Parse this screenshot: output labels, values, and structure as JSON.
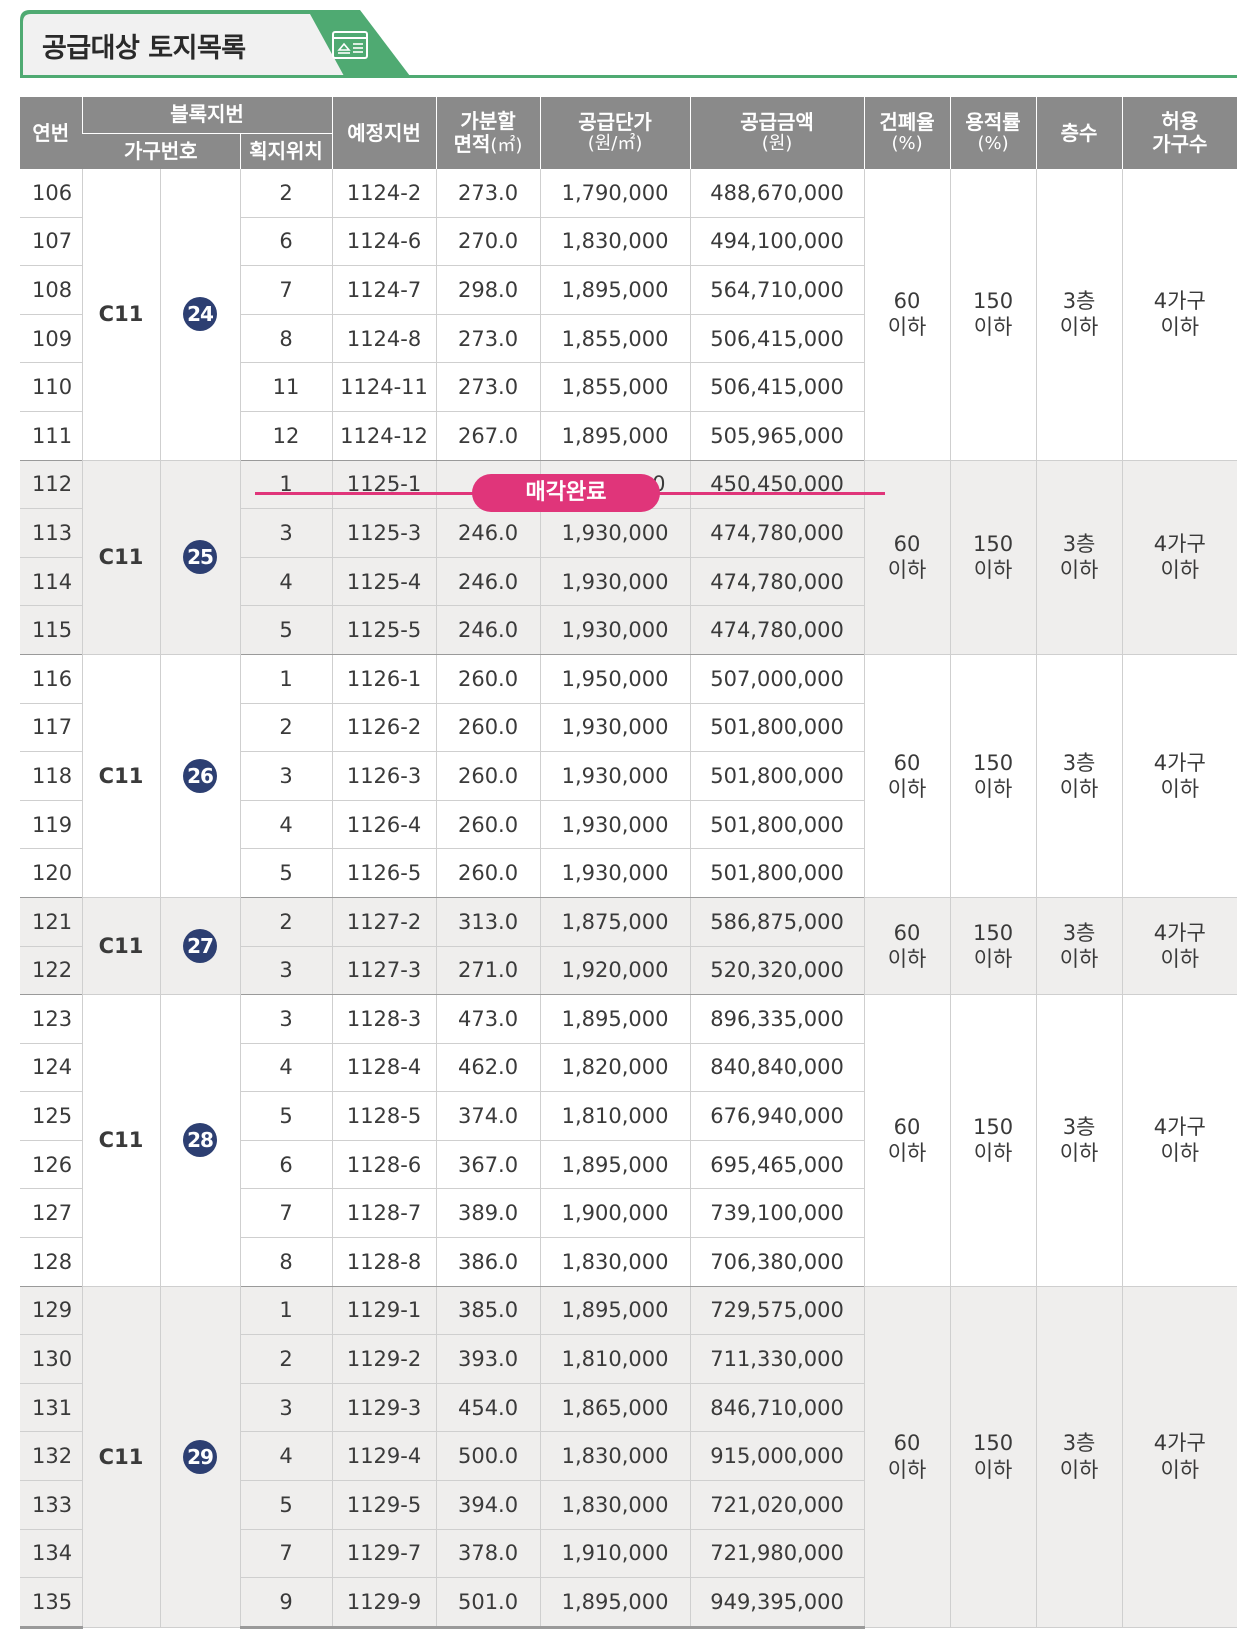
{
  "title": "공급대상 토지목록",
  "headers": {
    "no": "연번",
    "block_group": "블록지번",
    "household_no": "가구번호",
    "lot_position": "획지위치",
    "planned_lot": "예정지번",
    "area_line1": "가분할",
    "area_line2": "면적",
    "area_unit": "(㎡)",
    "unit_price_line1": "공급단가",
    "unit_price_unit": "(원/㎡)",
    "amount_line1": "공급금액",
    "amount_unit": "(원)",
    "bcr_line1": "건폐율",
    "bcr_unit": "(%)",
    "far_line1": "용적률",
    "far_unit": "(%)",
    "floors": "층수",
    "households_line1": "허용",
    "households_line2": "가구수"
  },
  "sold_label": "매각완료",
  "groups": [
    {
      "block": "C11",
      "household": "24",
      "shade": false,
      "bcr": [
        "60",
        "이하"
      ],
      "far": [
        "150",
        "이하"
      ],
      "floors": [
        "3층",
        "이하"
      ],
      "households": [
        "4가구",
        "이하"
      ],
      "rows": [
        {
          "no": "106",
          "lot": "2",
          "planned": "1124-2",
          "area": "273.0",
          "price": "1,790,000",
          "amount": "488,670,000"
        },
        {
          "no": "107",
          "lot": "6",
          "planned": "1124-6",
          "area": "270.0",
          "price": "1,830,000",
          "amount": "494,100,000"
        },
        {
          "no": "108",
          "lot": "7",
          "planned": "1124-7",
          "area": "298.0",
          "price": "1,895,000",
          "amount": "564,710,000"
        },
        {
          "no": "109",
          "lot": "8",
          "planned": "1124-8",
          "area": "273.0",
          "price": "1,855,000",
          "amount": "506,415,000"
        },
        {
          "no": "110",
          "lot": "11",
          "planned": "1124-11",
          "area": "273.0",
          "price": "1,855,000",
          "amount": "506,415,000"
        },
        {
          "no": "111",
          "lot": "12",
          "planned": "1124-12",
          "area": "267.0",
          "price": "1,895,000",
          "amount": "505,965,000"
        }
      ]
    },
    {
      "block": "C11",
      "household": "25",
      "shade": true,
      "bcr": [
        "60",
        "이하"
      ],
      "far": [
        "150",
        "이하"
      ],
      "floors": [
        "3층",
        "이하"
      ],
      "households": [
        "4가구",
        "이하"
      ],
      "rows": [
        {
          "no": "112",
          "lot": "1",
          "planned": "1125-1",
          "area": "",
          "price": "00",
          "amount": "450,450,000",
          "sold": true
        },
        {
          "no": "113",
          "lot": "3",
          "planned": "1125-3",
          "area": "246.0",
          "price": "1,930,000",
          "amount": "474,780,000"
        },
        {
          "no": "114",
          "lot": "4",
          "planned": "1125-4",
          "area": "246.0",
          "price": "1,930,000",
          "amount": "474,780,000"
        },
        {
          "no": "115",
          "lot": "5",
          "planned": "1125-5",
          "area": "246.0",
          "price": "1,930,000",
          "amount": "474,780,000"
        }
      ]
    },
    {
      "block": "C11",
      "household": "26",
      "shade": false,
      "bcr": [
        "60",
        "이하"
      ],
      "far": [
        "150",
        "이하"
      ],
      "floors": [
        "3층",
        "이하"
      ],
      "households": [
        "4가구",
        "이하"
      ],
      "rows": [
        {
          "no": "116",
          "lot": "1",
          "planned": "1126-1",
          "area": "260.0",
          "price": "1,950,000",
          "amount": "507,000,000"
        },
        {
          "no": "117",
          "lot": "2",
          "planned": "1126-2",
          "area": "260.0",
          "price": "1,930,000",
          "amount": "501,800,000"
        },
        {
          "no": "118",
          "lot": "3",
          "planned": "1126-3",
          "area": "260.0",
          "price": "1,930,000",
          "amount": "501,800,000"
        },
        {
          "no": "119",
          "lot": "4",
          "planned": "1126-4",
          "area": "260.0",
          "price": "1,930,000",
          "amount": "501,800,000"
        },
        {
          "no": "120",
          "lot": "5",
          "planned": "1126-5",
          "area": "260.0",
          "price": "1,930,000",
          "amount": "501,800,000"
        }
      ]
    },
    {
      "block": "C11",
      "household": "27",
      "shade": true,
      "bcr": [
        "60",
        "이하"
      ],
      "far": [
        "150",
        "이하"
      ],
      "floors": [
        "3층",
        "이하"
      ],
      "households": [
        "4가구",
        "이하"
      ],
      "rows": [
        {
          "no": "121",
          "lot": "2",
          "planned": "1127-2",
          "area": "313.0",
          "price": "1,875,000",
          "amount": "586,875,000"
        },
        {
          "no": "122",
          "lot": "3",
          "planned": "1127-3",
          "area": "271.0",
          "price": "1,920,000",
          "amount": "520,320,000"
        }
      ]
    },
    {
      "block": "C11",
      "household": "28",
      "shade": false,
      "bcr": [
        "60",
        "이하"
      ],
      "far": [
        "150",
        "이하"
      ],
      "floors": [
        "3층",
        "이하"
      ],
      "households": [
        "4가구",
        "이하"
      ],
      "rows": [
        {
          "no": "123",
          "lot": "3",
          "planned": "1128-3",
          "area": "473.0",
          "price": "1,895,000",
          "amount": "896,335,000"
        },
        {
          "no": "124",
          "lot": "4",
          "planned": "1128-4",
          "area": "462.0",
          "price": "1,820,000",
          "amount": "840,840,000"
        },
        {
          "no": "125",
          "lot": "5",
          "planned": "1128-5",
          "area": "374.0",
          "price": "1,810,000",
          "amount": "676,940,000"
        },
        {
          "no": "126",
          "lot": "6",
          "planned": "1128-6",
          "area": "367.0",
          "price": "1,895,000",
          "amount": "695,465,000"
        },
        {
          "no": "127",
          "lot": "7",
          "planned": "1128-7",
          "area": "389.0",
          "price": "1,900,000",
          "amount": "739,100,000"
        },
        {
          "no": "128",
          "lot": "8",
          "planned": "1128-8",
          "area": "386.0",
          "price": "1,830,000",
          "amount": "706,380,000"
        }
      ]
    },
    {
      "block": "C11",
      "household": "29",
      "shade": true,
      "bcr": [
        "60",
        "이하"
      ],
      "far": [
        "150",
        "이하"
      ],
      "floors": [
        "3층",
        "이하"
      ],
      "households": [
        "4가구",
        "이하"
      ],
      "rows": [
        {
          "no": "129",
          "lot": "1",
          "planned": "1129-1",
          "area": "385.0",
          "price": "1,895,000",
          "amount": "729,575,000"
        },
        {
          "no": "130",
          "lot": "2",
          "planned": "1129-2",
          "area": "393.0",
          "price": "1,810,000",
          "amount": "711,330,000"
        },
        {
          "no": "131",
          "lot": "3",
          "planned": "1129-3",
          "area": "454.0",
          "price": "1,865,000",
          "amount": "846,710,000"
        },
        {
          "no": "132",
          "lot": "4",
          "planned": "1129-4",
          "area": "500.0",
          "price": "1,830,000",
          "amount": "915,000,000"
        },
        {
          "no": "133",
          "lot": "5",
          "planned": "1129-5",
          "area": "394.0",
          "price": "1,830,000",
          "amount": "721,020,000"
        },
        {
          "no": "134",
          "lot": "7",
          "planned": "1129-7",
          "area": "378.0",
          "price": "1,910,000",
          "amount": "721,980,000"
        },
        {
          "no": "135",
          "lot": "9",
          "planned": "1129-9",
          "area": "501.0",
          "price": "1,895,000",
          "amount": "949,395,000"
        }
      ]
    }
  ]
}
